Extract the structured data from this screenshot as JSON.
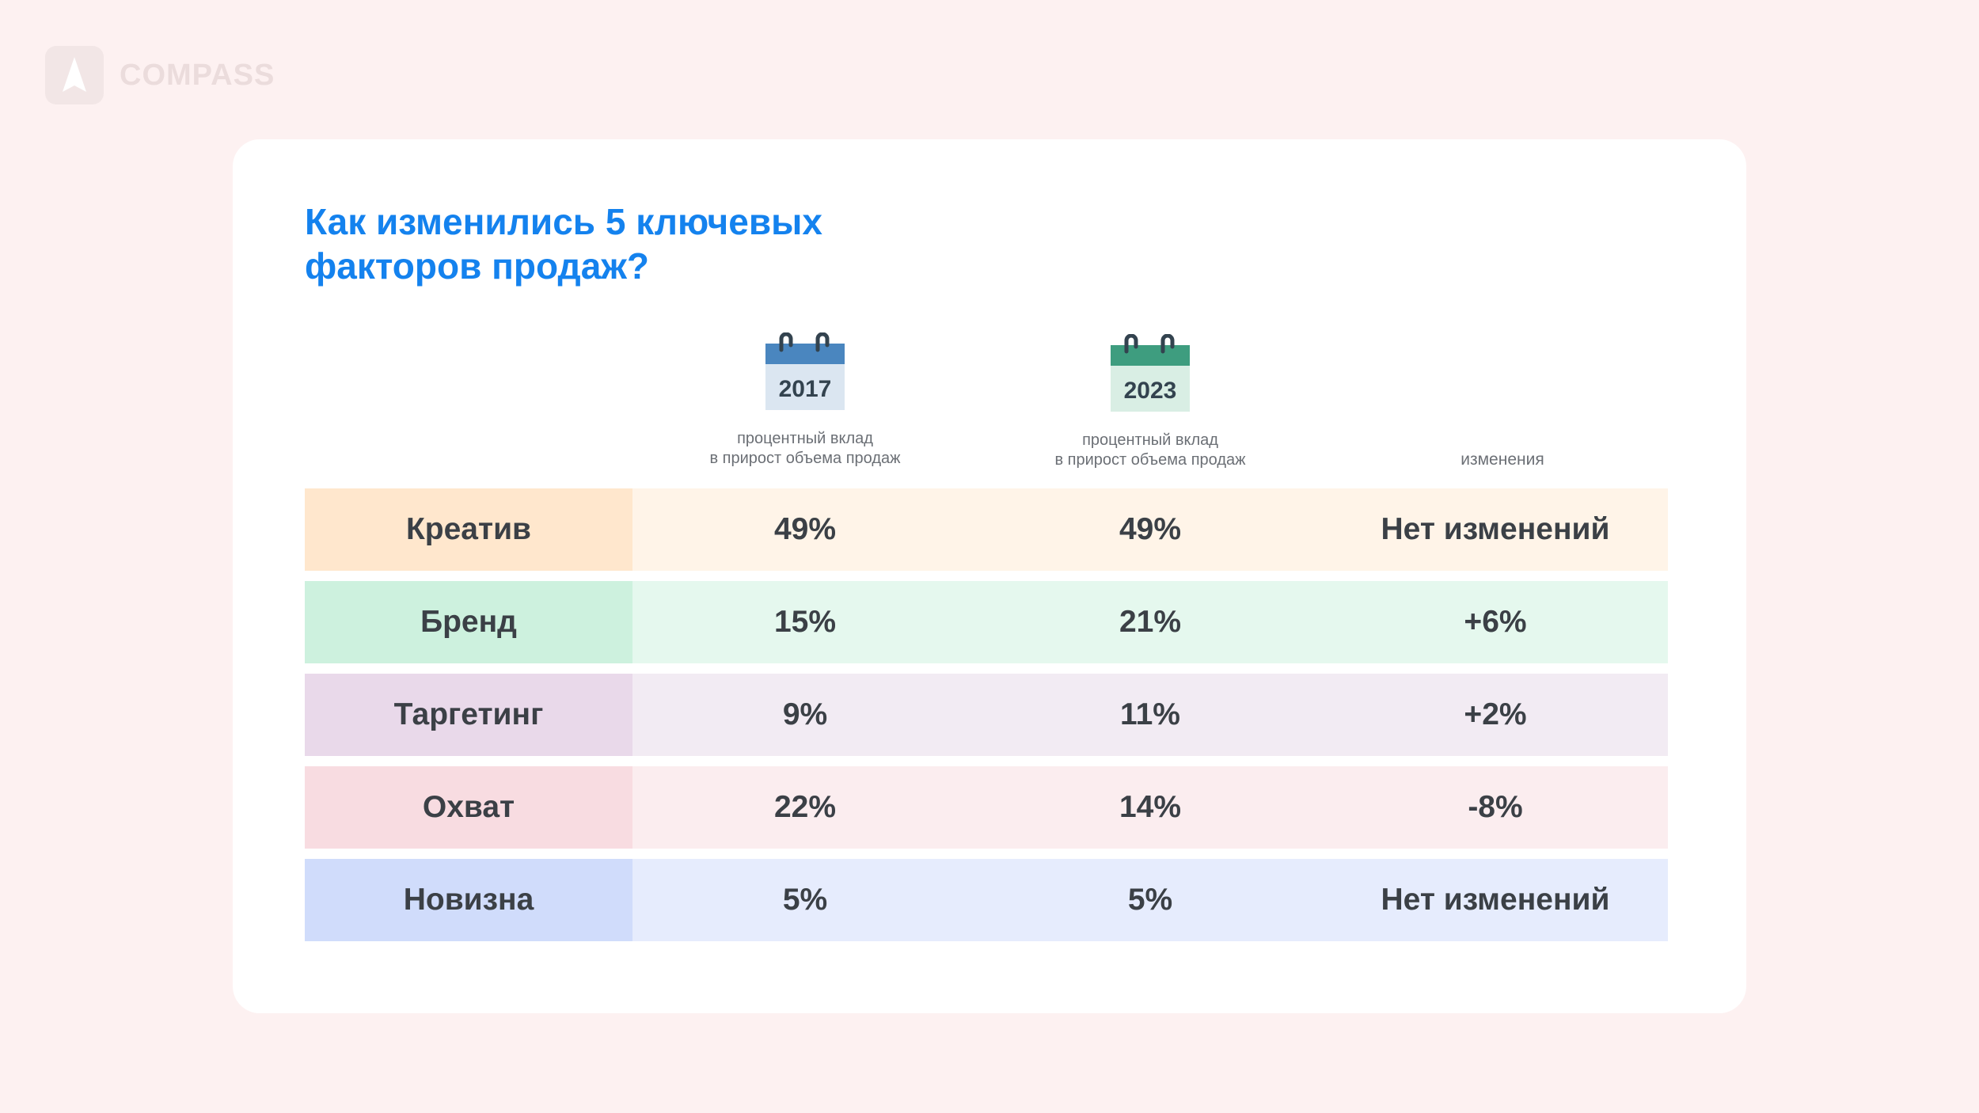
{
  "brand": {
    "name": "COMPASS",
    "icon": "compass-logo-icon"
  },
  "title": {
    "line1": "Как изменились 5 ключевых",
    "line2": "факторов продаж?"
  },
  "columns": [
    {
      "year": "2017",
      "icon": "calendar-icon",
      "color": "#4a86bf",
      "page_color": "#dbe6f1",
      "subtitle_line1": "процентный вклад",
      "subtitle_line2": "в прирост объема продаж"
    },
    {
      "year": "2023",
      "icon": "calendar-icon",
      "color": "#3e9d7f",
      "page_color": "#d9eee4",
      "subtitle_line1": "процентный вклад",
      "subtitle_line2": "в прирост объема продаж"
    }
  ],
  "change_header": "изменения",
  "rows": [
    {
      "factor": "Креатив",
      "v2017": "49%",
      "v2023": "49%",
      "change": "Нет изменений",
      "label_bg": "#ffe7cd",
      "row_bg": "#fff4e8"
    },
    {
      "factor": "Бренд",
      "v2017": "15%",
      "v2023": "21%",
      "change": "+6%",
      "label_bg": "#cdf1de",
      "row_bg": "#e5f8ee"
    },
    {
      "factor": "Таргетинг",
      "v2017": "9%",
      "v2023": "11%",
      "change": "+2%",
      "label_bg": "#e9d9ea",
      "row_bg": "#f2ebf3"
    },
    {
      "factor": "Охват",
      "v2017": "22%",
      "v2023": "14%",
      "change": "-8%",
      "label_bg": "#f8dce1",
      "row_bg": "#fbedef"
    },
    {
      "factor": "Новизна",
      "v2017": "5%",
      "v2023": "5%",
      "change": "Нет изменений",
      "label_bg": "#d0dcfb",
      "row_bg": "#e6ecfd"
    }
  ]
}
